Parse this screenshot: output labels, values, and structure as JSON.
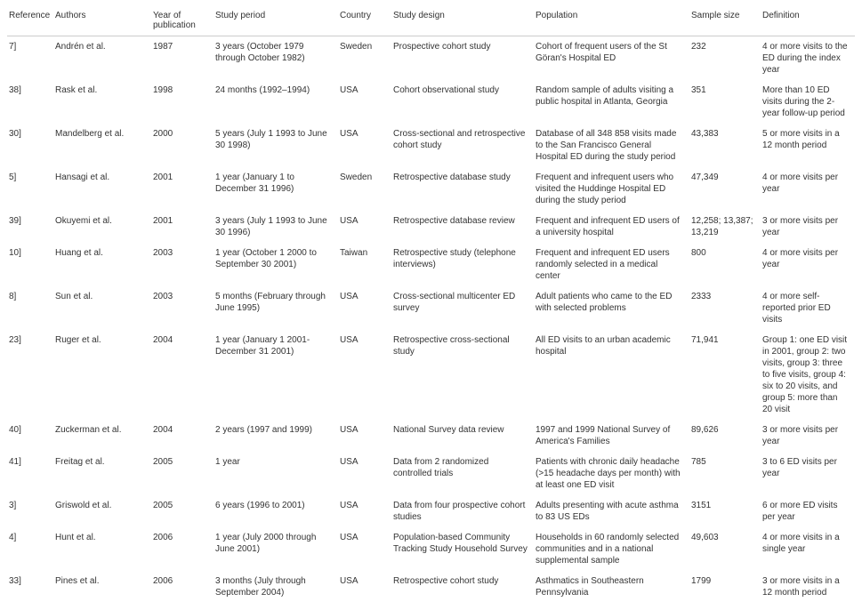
{
  "columns": [
    "Reference",
    "Authors",
    "Year of publication",
    "Study period",
    "Country",
    "Study design",
    "Population",
    "Sample size",
    "Definition"
  ],
  "rows": [
    {
      "ref": "7]",
      "authors": "Andrén et al.",
      "year": "1987",
      "period": "3 years (October 1979 through October 1982)",
      "country": "Sweden",
      "design": "Prospective cohort study",
      "pop": "Cohort of frequent users of the St Göran's Hospital ED",
      "sample": "232",
      "def": "4 or more visits to the ED during the index year"
    },
    {
      "ref": "38]",
      "authors": "Rask et al.",
      "year": "1998",
      "period": "24 months (1992–1994)",
      "country": "USA",
      "design": "Cohort observational study",
      "pop": "Random sample of adults visiting a public hospital in Atlanta, Georgia",
      "sample": "351",
      "def": "More than 10 ED visits during the 2-year follow-up period"
    },
    {
      "ref": "30]",
      "authors": "Mandelberg et al.",
      "year": "2000",
      "period": "5 years (July 1 1993 to June 30 1998)",
      "country": "USA",
      "design": "Cross-sectional and retrospective cohort study",
      "pop": "Database of all 348 858 visits made to the San Francisco General Hospital ED during the study period",
      "sample": "43,383",
      "def": "5 or more visits in a 12 month period"
    },
    {
      "ref": "5]",
      "authors": "Hansagi et al.",
      "year": "2001",
      "period": "1 year (January 1 to December 31 1996)",
      "country": "Sweden",
      "design": "Retrospective database study",
      "pop": "Frequent and infrequent users who visited the Huddinge Hospital ED during the study period",
      "sample": "47,349",
      "def": "4 or more visits per year"
    },
    {
      "ref": "39]",
      "authors": "Okuyemi et al.",
      "year": "2001",
      "period": "3 years (July 1 1993 to June 30 1996)",
      "country": "USA",
      "design": "Retrospective database review",
      "pop": "Frequent and infrequent ED users of a university hospital",
      "sample": "12,258; 13,387; 13,219",
      "def": "3 or more visits per year"
    },
    {
      "ref": "10]",
      "authors": "Huang et al.",
      "year": "2003",
      "period": "1 year (October 1 2000 to September 30 2001)",
      "country": "Taiwan",
      "design": "Retrospective study (telephone interviews)",
      "pop": "Frequent and infrequent ED users randomly selected in a medical center",
      "sample": "800",
      "def": "4 or more visits per year"
    },
    {
      "ref": "8]",
      "authors": "Sun et al.",
      "year": "2003",
      "period": "5 months (February through June 1995)",
      "country": "USA",
      "design": "Cross-sectional multicenter ED survey",
      "pop": "Adult patients who came to the ED with selected problems",
      "sample": "2333",
      "def": "4 or more self-reported prior ED visits"
    },
    {
      "ref": "23]",
      "authors": "Ruger et al.",
      "year": "2004",
      "period": "1 year (January 1 2001- December 31 2001)",
      "country": "USA",
      "design": "Retrospective cross-sectional study",
      "pop": "All ED visits to an urban academic hospital",
      "sample": "71,941",
      "def": "Group 1: one ED visit in 2001, group 2: two visits, group 3: three to five visits, group 4: six to 20 visits, and group 5: more than 20 visit"
    },
    {
      "ref": "40]",
      "authors": "Zuckerman et al.",
      "year": "2004",
      "period": "2 years (1997 and 1999)",
      "country": "USA",
      "design": "National Survey data review",
      "pop": "1997 and 1999 National Survey of America's Families",
      "sample": "89,626",
      "def": "3 or more visits per year"
    },
    {
      "ref": "41]",
      "authors": "Freitag et al.",
      "year": "2005",
      "period": "1 year",
      "country": "USA",
      "design": "Data from 2 randomized controlled trials",
      "pop": "Patients with chronic daily headache (>15 headache days per month) with at least one ED visit",
      "sample": "785",
      "def": "3 to 6 ED visits per year"
    },
    {
      "ref": "3]",
      "authors": "Griswold et al.",
      "year": "2005",
      "period": "6 years (1996 to 2001)",
      "country": "USA",
      "design": "Data from four prospective cohort studies",
      "pop": "Adults presenting with acute asthma to 83 US EDs",
      "sample": "3151",
      "def": "6 or more ED visits per year"
    },
    {
      "ref": "4]",
      "authors": "Hunt et al.",
      "year": "2006",
      "period": "1 year (July 2000 through June 2001)",
      "country": "USA",
      "design": "Population-based Community Tracking Study Household Survey",
      "pop": "Households in 60 randomly selected communities and in a national supplemental sample",
      "sample": "49,603",
      "def": "4 or more visits in a single year"
    },
    {
      "ref": "33]",
      "authors": "Pines et al.",
      "year": "2006",
      "period": "3 months (July through September 2004)",
      "country": "USA",
      "design": "Retrospective cohort study",
      "pop": "Asthmatics in Southeastern Pennsylvania",
      "sample": "1799",
      "def": "3 or more visits in a 12 month period"
    }
  ]
}
